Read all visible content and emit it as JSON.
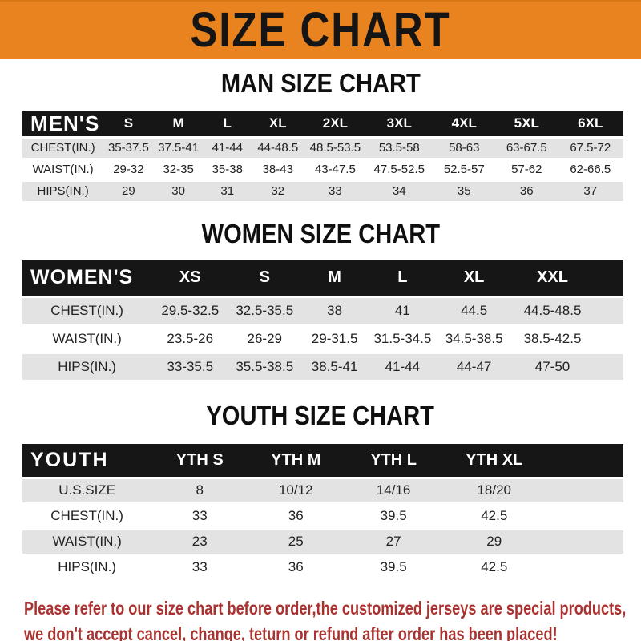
{
  "banner": {
    "title": "SIZE CHART",
    "bg_color": "#E8831F",
    "text_color": "#151515"
  },
  "sections": [
    {
      "id": "men",
      "heading": "MAN SIZE CHART",
      "header_label": "MEN'S",
      "columns": [
        "S",
        "M",
        "L",
        "XL",
        "2XL",
        "3XL",
        "4XL",
        "5XL",
        "6XL"
      ],
      "rows": [
        {
          "label": "CHEST(IN.)",
          "values": [
            "35-37.5",
            "37.5-41",
            "41-44",
            "44-48.5",
            "48.5-53.5",
            "53.5-58",
            "58-63",
            "63-67.5",
            "67.5-72"
          ]
        },
        {
          "label": "WAIST(IN.)",
          "values": [
            "29-32",
            "32-35",
            "35-38",
            "38-43",
            "43-47.5",
            "47.5-52.5",
            "52.5-57",
            "57-62",
            "62-66.5"
          ]
        },
        {
          "label": "HIPS(IN.)",
          "values": [
            "29",
            "30",
            "31",
            "32",
            "33",
            "34",
            "35",
            "36",
            "37"
          ]
        }
      ]
    },
    {
      "id": "women",
      "heading": "WOMEN SIZE CHART",
      "header_label": "WOMEN'S",
      "columns": [
        "XS",
        "S",
        "M",
        "L",
        "XL",
        "XXL"
      ],
      "rows": [
        {
          "label": "CHEST(IN.)",
          "values": [
            "29.5-32.5",
            "32.5-35.5",
            "38",
            "41",
            "44.5",
            "44.5-48.5"
          ]
        },
        {
          "label": "WAIST(IN.)",
          "values": [
            "23.5-26",
            "26-29",
            "29-31.5",
            "31.5-34.5",
            "34.5-38.5",
            "38.5-42.5"
          ]
        },
        {
          "label": "HIPS(IN.)",
          "values": [
            "33-35.5",
            "35.5-38.5",
            "38.5-41",
            "41-44",
            "44-47",
            "47-50"
          ]
        }
      ]
    },
    {
      "id": "youth",
      "heading": "YOUTH SIZE CHART",
      "header_label": "YOUTH",
      "columns": [
        "YTH S",
        "YTH M",
        "YTH L",
        "YTH XL"
      ],
      "rows": [
        {
          "label": "U.S.SIZE",
          "values": [
            "8",
            "10/12",
            "14/16",
            "18/20"
          ]
        },
        {
          "label": "CHEST(IN.)",
          "values": [
            "33",
            "36",
            "39.5",
            "42.5"
          ]
        },
        {
          "label": "WAIST(IN.)",
          "values": [
            "23",
            "25",
            "27",
            "29"
          ]
        },
        {
          "label": "HIPS(IN.)",
          "values": [
            "33",
            "36",
            "39.5",
            "42.5"
          ]
        }
      ]
    }
  ],
  "table_colors": {
    "header_bg": "#161616",
    "header_text": "#ffffff",
    "stripe_gray": "#E3E3E3",
    "stripe_white": "#ffffff"
  },
  "disclaimer": {
    "line1": "Please refer to our size chart before order,the customized jerseys are special products,",
    "line2": "we don't accept cancel, change, teturn or refund after order has been placed!",
    "color": "#A93330"
  }
}
